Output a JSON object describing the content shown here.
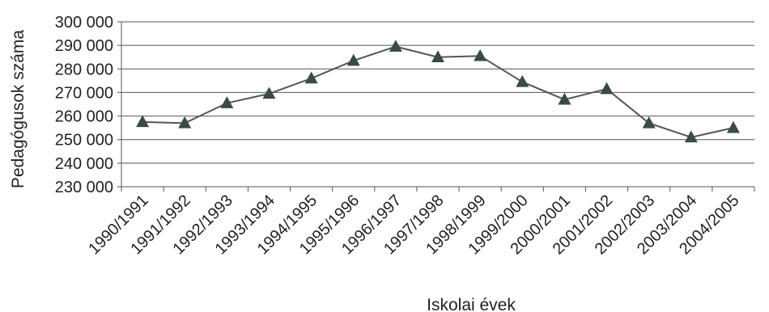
{
  "chart_data": {
    "type": "line",
    "title": "",
    "xlabel": "Iskolai évek",
    "ylabel": "Pedagógusok száma",
    "ylim": [
      230000,
      300000
    ],
    "yticks": [
      230000,
      240000,
      250000,
      260000,
      270000,
      280000,
      290000,
      300000
    ],
    "ytick_labels": [
      "230 000",
      "240 000",
      "250 000",
      "260 000",
      "270 000",
      "280 000",
      "290 000",
      "300 000"
    ],
    "grid": true,
    "marker": "triangle",
    "categories": [
      "1990/1991",
      "1991/1992",
      "1992/1993",
      "1993/1994",
      "1994/1995",
      "1995/1996",
      "1996/1997",
      "1997/1998",
      "1998/1999",
      "1999/2000",
      "2000/2001",
      "2001/2002",
      "2002/2003",
      "2003/2004",
      "2004/2005"
    ],
    "series": [
      {
        "values": [
          257500,
          257000,
          265500,
          269500,
          276000,
          283500,
          289500,
          285000,
          285500,
          274500,
          267000,
          271500,
          257000,
          251000,
          255000
        ]
      }
    ],
    "colors": {
      "line": "#555555",
      "marker": "#3a4a44",
      "grid": "#555555",
      "text": "#222222"
    }
  }
}
